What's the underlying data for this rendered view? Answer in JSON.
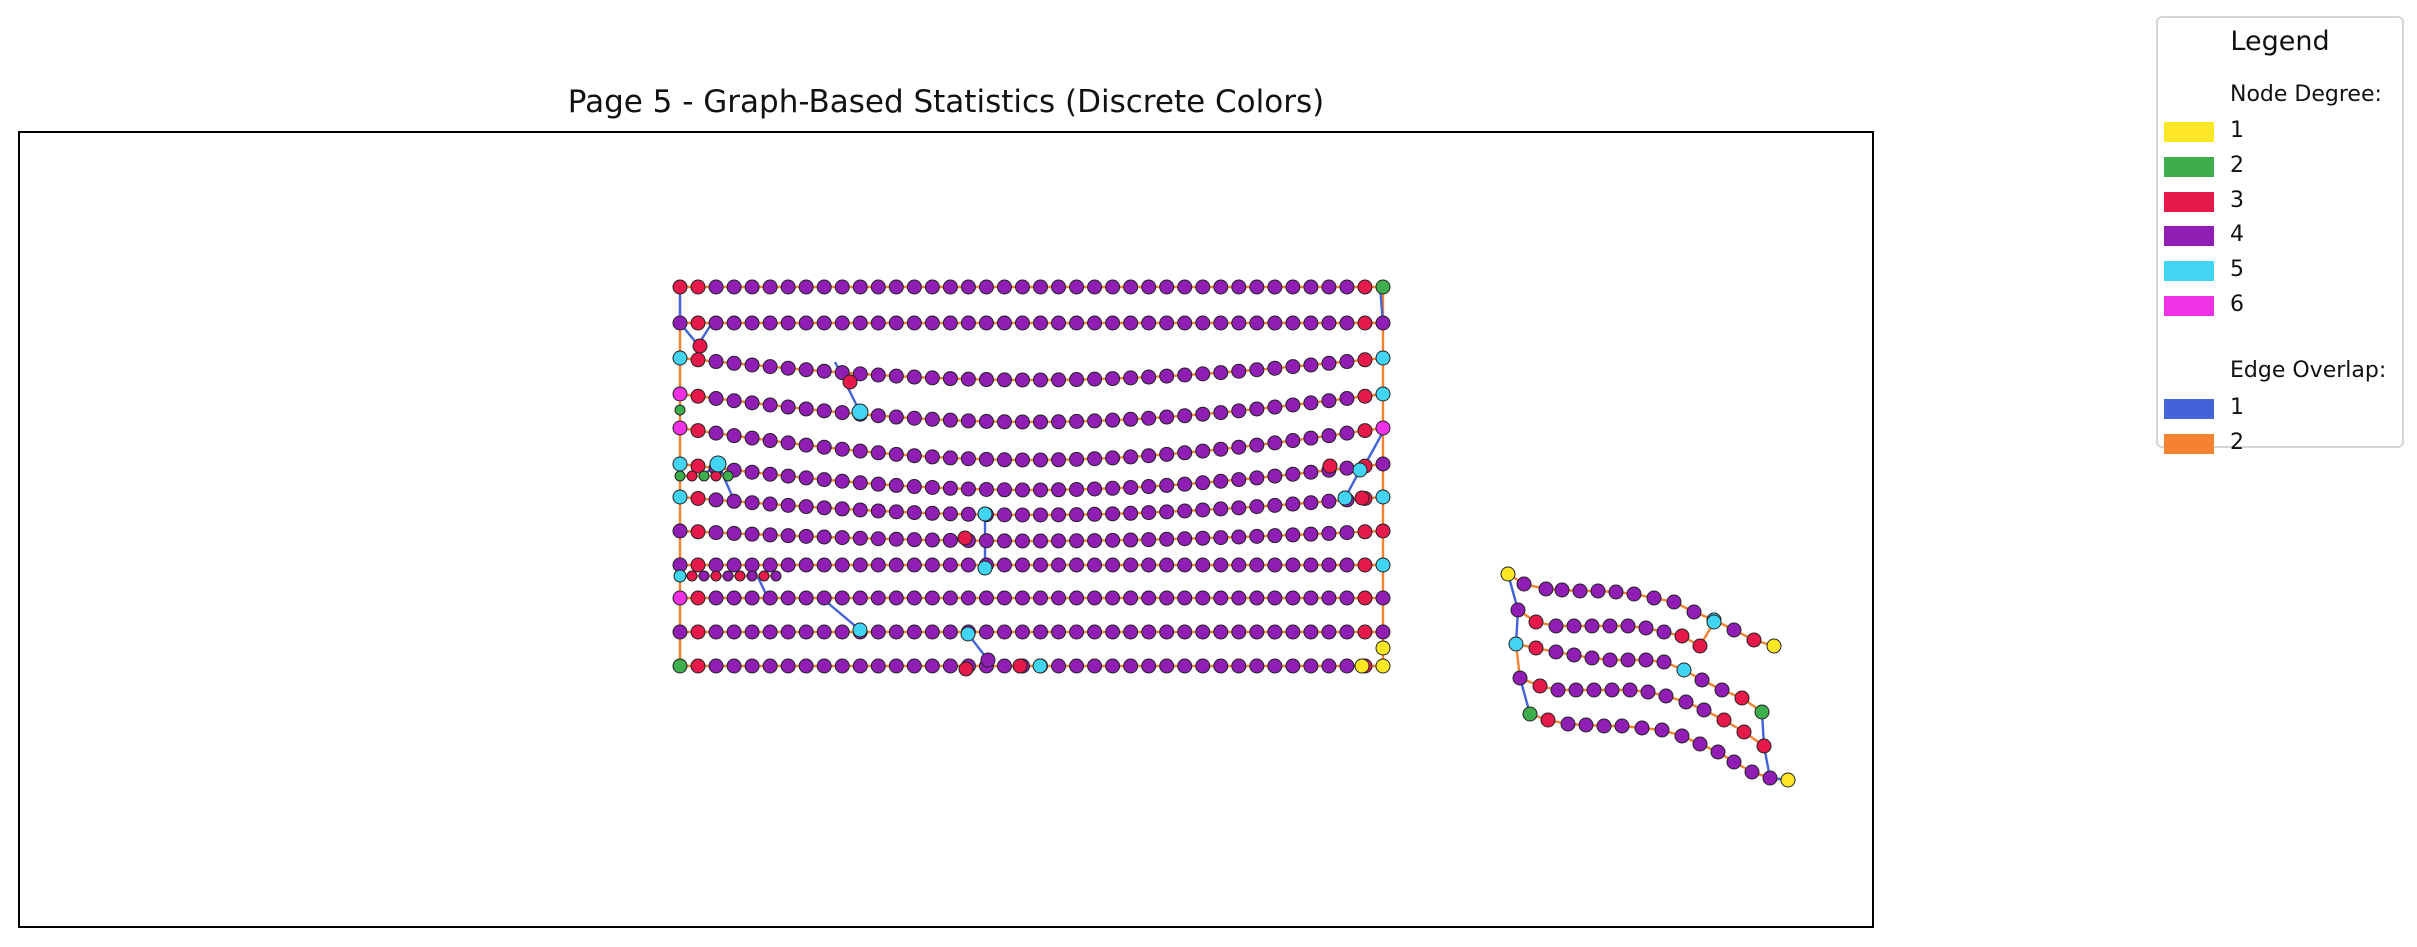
{
  "title": "Page 5 - Graph-Based Statistics (Discrete Colors)",
  "legend": {
    "title": "Legend",
    "node_heading": "Node Degree:",
    "node_items": [
      {
        "label": "1",
        "color": "#FDE725"
      },
      {
        "label": "2",
        "color": "#3DAE4B"
      },
      {
        "label": "3",
        "color": "#E6194B"
      },
      {
        "label": "4",
        "color": "#911EB4"
      },
      {
        "label": "5",
        "color": "#42D4F4"
      },
      {
        "label": "6",
        "color": "#F032E6"
      }
    ],
    "edge_heading": "Edge Overlap:",
    "edge_items": [
      {
        "label": "1",
        "color": "#4363D8"
      },
      {
        "label": "2",
        "color": "#F58231"
      }
    ]
  }
}
